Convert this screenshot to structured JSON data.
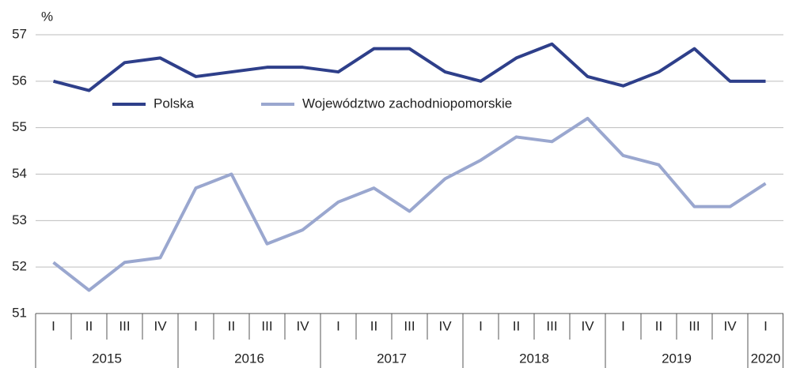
{
  "chart_data": {
    "type": "line",
    "y_label": "%",
    "categories": [
      "I",
      "II",
      "III",
      "IV",
      "I",
      "II",
      "III",
      "IV",
      "I",
      "II",
      "III",
      "IV",
      "I",
      "II",
      "III",
      "IV",
      "I",
      "II",
      "III",
      "IV",
      "I"
    ],
    "year_groups": [
      "2015",
      "2016",
      "2017",
      "2018",
      "2019",
      "2020"
    ],
    "series": [
      {
        "name": "Polska",
        "color": "#2e3f8a",
        "values": [
          56.0,
          55.8,
          56.4,
          56.5,
          56.1,
          56.2,
          56.3,
          56.3,
          56.2,
          56.7,
          56.7,
          56.2,
          56.0,
          56.5,
          56.8,
          56.1,
          55.9,
          56.2,
          56.7,
          56.0,
          56.0
        ]
      },
      {
        "name": "Województwo zachodniopomorskie",
        "color": "#9aa7cf",
        "values": [
          52.1,
          51.5,
          52.1,
          52.2,
          53.7,
          54.0,
          52.5,
          52.8,
          53.4,
          53.7,
          53.2,
          53.9,
          54.3,
          54.8,
          54.7,
          55.2,
          54.4,
          54.2,
          53.3,
          53.3,
          53.8
        ]
      }
    ],
    "ylim": [
      51,
      57
    ],
    "yticks": [
      51,
      52,
      53,
      54,
      55,
      56,
      57
    ],
    "grid": true,
    "legend": "top"
  }
}
